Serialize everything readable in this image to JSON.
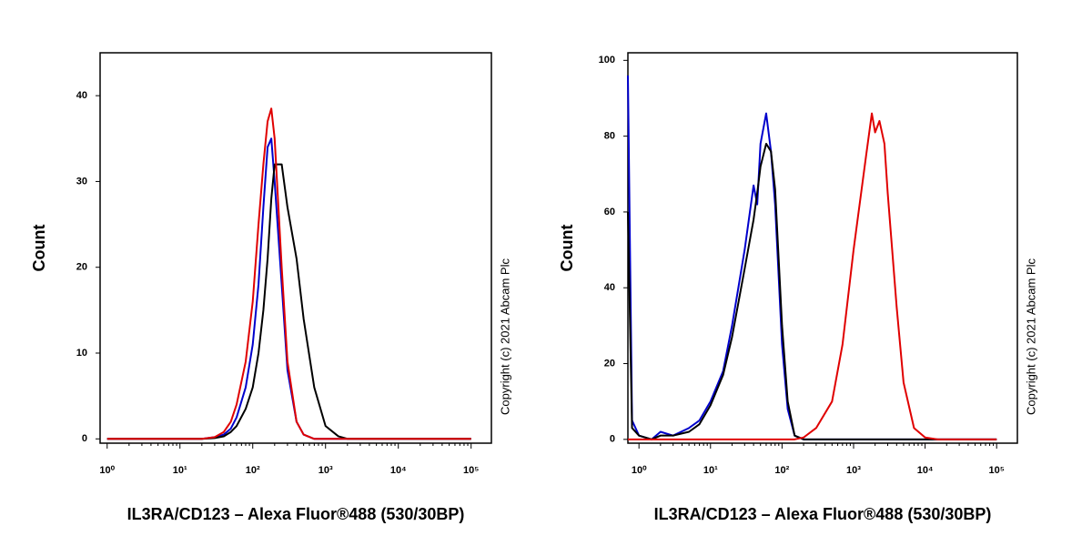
{
  "chart_data": [
    {
      "type": "line",
      "ylabel": "Count",
      "xlabel": "IL3RA/CD123 – Alexa Fluor®488 (530/30BP)",
      "annotation": "Copyright (c) 2021 Abcam Plc",
      "xscale": "log",
      "xlim": [
        0.8,
        190000
      ],
      "ylim": [
        -0.5,
        45
      ],
      "xticks": [
        {
          "value": 1,
          "label": "10⁰"
        },
        {
          "value": 10,
          "label": "10¹"
        },
        {
          "value": 100,
          "label": "10²"
        },
        {
          "value": 1000,
          "label": "10³"
        },
        {
          "value": 10000,
          "label": "10⁴"
        },
        {
          "value": 100000,
          "label": "10⁵"
        }
      ],
      "yticks": [
        0,
        10,
        20,
        30,
        40
      ],
      "x": [
        1,
        10,
        20,
        30,
        40,
        50,
        60,
        80,
        100,
        120,
        140,
        160,
        180,
        200,
        250,
        300,
        400,
        500,
        700,
        1000,
        1500,
        2000,
        5000,
        10000,
        100000
      ],
      "series": [
        {
          "color": "#0000cc",
          "values": [
            0,
            0,
            0,
            0.2,
            0.5,
            1.2,
            2.5,
            6,
            11,
            18,
            27,
            34,
            35,
            30,
            18,
            8,
            2,
            0.5,
            0,
            0,
            0,
            0,
            0,
            0,
            0
          ]
        },
        {
          "color": "#000000",
          "values": [
            0,
            0,
            0,
            0.1,
            0.3,
            0.8,
            1.5,
            3.5,
            6,
            10,
            15,
            21,
            28,
            32,
            32,
            27,
            21,
            14,
            6,
            1.5,
            0.3,
            0,
            0,
            0,
            0
          ]
        },
        {
          "color": "#e00000",
          "values": [
            0,
            0,
            0,
            0.2,
            0.8,
            2,
            4,
            9,
            16,
            25,
            32,
            37,
            38.5,
            35,
            20,
            9,
            2,
            0.5,
            0,
            0,
            0,
            0,
            0,
            0,
            0
          ]
        }
      ]
    },
    {
      "type": "line",
      "ylabel": "Count",
      "xlabel": "IL3RA/CD123 – Alexa Fluor®488 (530/30BP)",
      "annotation": "Copyright (c) 2021 Abcam Plc",
      "xscale": "log",
      "xlim": [
        0.7,
        195000
      ],
      "ylim": [
        -1,
        102
      ],
      "xticks": [
        {
          "value": 1,
          "label": "10⁰"
        },
        {
          "value": 10,
          "label": "10¹"
        },
        {
          "value": 100,
          "label": "10²"
        },
        {
          "value": 1000,
          "label": "10³"
        },
        {
          "value": 10000,
          "label": "10⁴"
        },
        {
          "value": 100000,
          "label": "10⁵"
        }
      ],
      "yticks": [
        0,
        20,
        40,
        60,
        80,
        100
      ],
      "x": [
        0.7,
        0.8,
        1,
        1.5,
        2,
        3,
        5,
        7,
        10,
        15,
        20,
        30,
        40,
        45,
        50,
        60,
        70,
        80,
        100,
        120,
        150,
        200,
        300,
        500,
        700,
        1000,
        1500,
        1800,
        2000,
        2300,
        2700,
        3000,
        4000,
        5000,
        7000,
        10000,
        15000,
        100000
      ],
      "series": [
        {
          "color": "#0000cc",
          "values": [
            96,
            5,
            1,
            0,
            2,
            1,
            3,
            5,
            10,
            18,
            30,
            50,
            67,
            62,
            78,
            86,
            76,
            62,
            25,
            8,
            1,
            0,
            0,
            0,
            0,
            0,
            0,
            0,
            0,
            0,
            0,
            0,
            0,
            0,
            0,
            0,
            0,
            0
          ]
        },
        {
          "color": "#000000",
          "values": [
            60,
            3,
            1,
            0,
            1,
            1,
            2,
            4,
            9,
            17,
            27,
            45,
            58,
            65,
            72,
            78,
            76,
            66,
            30,
            10,
            1,
            0,
            0,
            0,
            0,
            0,
            0,
            0,
            0,
            0,
            0,
            0,
            0,
            0,
            0,
            0,
            0,
            0
          ]
        },
        {
          "color": "#e00000",
          "values": [
            0,
            0,
            0,
            0,
            0,
            0,
            0,
            0,
            0,
            0,
            0,
            0,
            0,
            0,
            0,
            0,
            0,
            0,
            0,
            0,
            0,
            0.5,
            3,
            10,
            25,
            50,
            75,
            86,
            81,
            84,
            78,
            65,
            35,
            15,
            3,
            0.5,
            0,
            0
          ]
        }
      ]
    }
  ]
}
